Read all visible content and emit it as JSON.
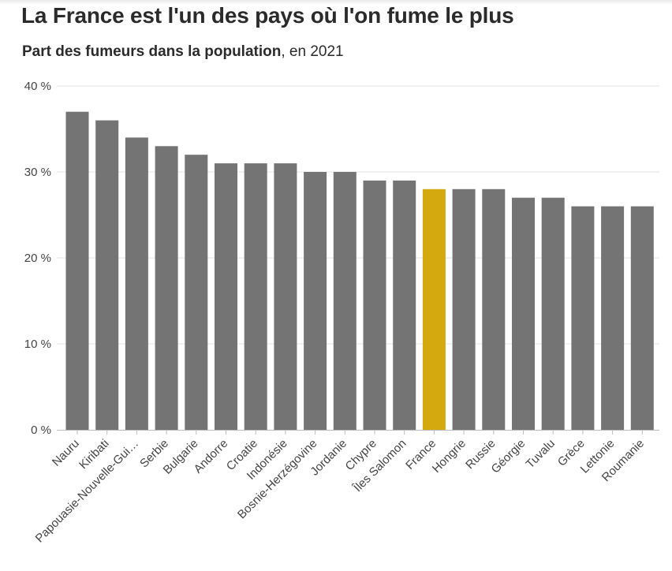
{
  "chart_data": {
    "type": "bar",
    "title": "La France est l'un des pays où l'on fume le plus",
    "subtitle_strong": "Part des fumeurs dans la population",
    "subtitle_rest": ", en 2021",
    "categories": [
      "Nauru",
      "Kiribati",
      "Papouasie-Nouvelle-Gui…",
      "Serbie",
      "Bulgarie",
      "Andorre",
      "Croatie",
      "Indonésie",
      "Bosnie-Herzégovine",
      "Jordanie",
      "Chypre",
      "Îles Salomon",
      "France",
      "Hongrie",
      "Russie",
      "Géorgie",
      "Tuvalu",
      "Grèce",
      "Lettonie",
      "Roumanie"
    ],
    "values": [
      37,
      36,
      34,
      33,
      32,
      31,
      31,
      31,
      30,
      30,
      29,
      29,
      28,
      28,
      28,
      27,
      27,
      26,
      26,
      26
    ],
    "highlight_category": "France",
    "y_ticks": [
      {
        "value": 0,
        "label": "0 %"
      },
      {
        "value": 10,
        "label": "10 %"
      },
      {
        "value": 20,
        "label": "20 %"
      },
      {
        "value": 30,
        "label": "30 %"
      },
      {
        "value": 40,
        "label": "40 %"
      }
    ],
    "ylim": [
      0,
      40
    ],
    "grid": true,
    "colors": {
      "bar": "#747474",
      "highlight": "#d4a90f",
      "grid": "#e3e3e3",
      "axis": "#bdbdbd"
    }
  }
}
